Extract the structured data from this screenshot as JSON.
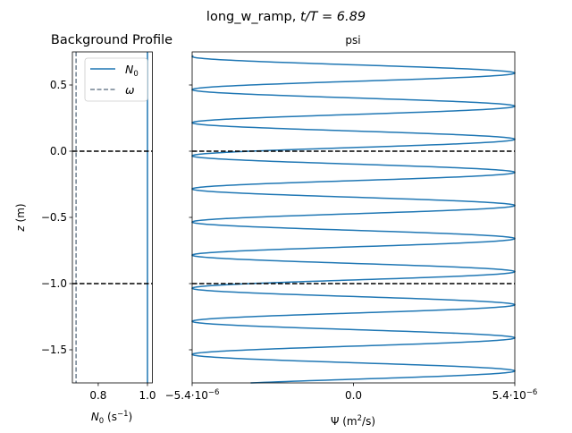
{
  "figure": {
    "title_prefix": "long_w_ramp, ",
    "title_math": "t/T = 6.89"
  },
  "chart_data": [
    {
      "type": "line",
      "title": "Background Profile",
      "xlabel_main": "N",
      "xlabel_sub": "0",
      "xlabel_unit_open": " (s",
      "xlabel_unit_sup": "−1",
      "xlabel_unit_close": ")",
      "ylabel_italic": "z",
      "ylabel_unit": " (m)",
      "xlim": [
        0.695,
        1.02
      ],
      "ylim": [
        -1.75,
        0.75
      ],
      "xticks": [
        0.8,
        1.0
      ],
      "xtick_labels": [
        "0.8",
        "1.0"
      ],
      "yticks": [
        0.5,
        0.0,
        -0.5,
        -1.0,
        -1.5
      ],
      "ytick_labels": [
        "0.5",
        "0.0",
        "−0.5",
        "−1.0",
        "−1.5"
      ],
      "series": [
        {
          "name": "N",
          "name_sub": "0",
          "style": "solid",
          "color": "#1f77b4",
          "x_const": 1.0
        },
        {
          "name": "ω",
          "style": "dashed",
          "color": "#708090",
          "x_const": 0.71
        }
      ],
      "hlines": [
        0.0,
        -1.0
      ],
      "legend": "top-right"
    },
    {
      "type": "line",
      "title": "psi",
      "xlabel": "Ψ (m",
      "xlabel_sup": "2",
      "xlabel_close": "/s)",
      "xlim": [
        -5.4e-06,
        5.4e-06
      ],
      "ylim": [
        -1.75,
        0.75
      ],
      "xticks": [
        -5.4e-06,
        0.0,
        5.4e-06
      ],
      "xtick_labels": [
        {
          "mantissa": "−5.4·10",
          "exp": "−6"
        },
        {
          "mantissa": "0.0",
          "exp": ""
        },
        {
          "mantissa": "5.4·10",
          "exp": "−6"
        }
      ],
      "yticks": [
        0.5,
        0.0,
        -0.5,
        -1.0,
        -1.5
      ],
      "series": [
        {
          "name": "psi",
          "color": "#1f77b4",
          "amplitude": 5.4e-06,
          "period_z": 0.25,
          "z_right_peak": 0.59,
          "z_max": 0.72,
          "z_min": -1.75
        }
      ],
      "hlines": [
        0.0,
        -1.0
      ]
    }
  ]
}
